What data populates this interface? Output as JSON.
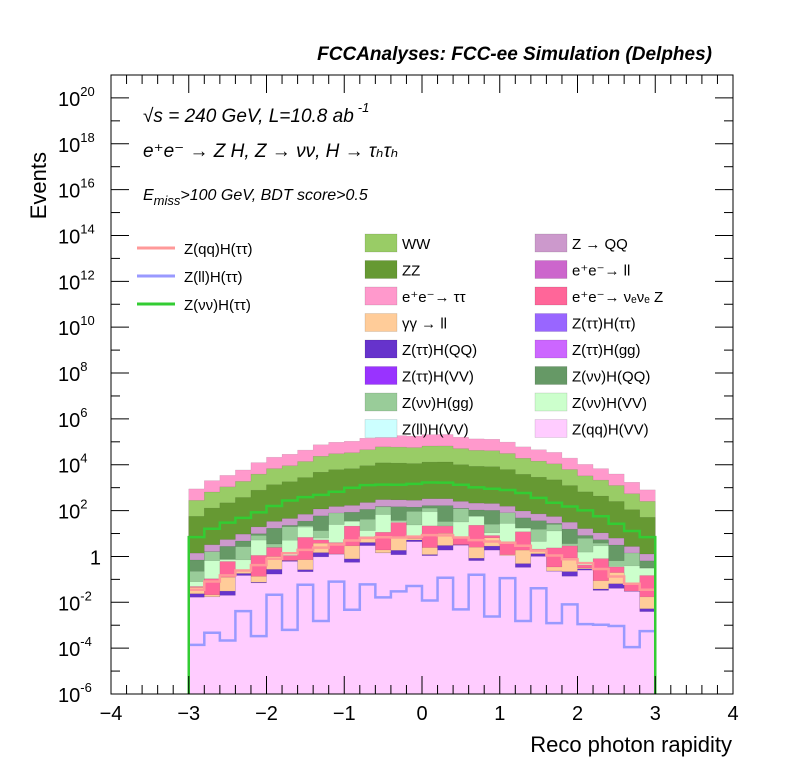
{
  "chart_data": {
    "type": "histogram",
    "title": "FCCAnalyses: FCC-ee Simulation (Delphes)",
    "xlabel": "Reco photon rapidity",
    "ylabel": "Events",
    "xlim": [
      -4,
      4
    ],
    "ylim": [
      1e-06,
      1e+21
    ],
    "log_y": true,
    "x_tick_labels": [
      "−4",
      "−3",
      "−2",
      "−1",
      "0",
      "1",
      "2",
      "3",
      "4"
    ],
    "y_tick_labels": [
      {
        "base": "10",
        "exp": "-6"
      },
      {
        "base": "10",
        "exp": "-4"
      },
      {
        "base": "10",
        "exp": "-2"
      },
      {
        "base": "1",
        "exp": ""
      },
      {
        "base": "10",
        "exp": "2"
      },
      {
        "base": "10",
        "exp": "4"
      },
      {
        "base": "10",
        "exp": "6"
      },
      {
        "base": "10",
        "exp": "8"
      },
      {
        "base": "10",
        "exp": "10"
      },
      {
        "base": "10",
        "exp": "12"
      },
      {
        "base": "10",
        "exp": "14"
      },
      {
        "base": "10",
        "exp": "16"
      },
      {
        "base": "10",
        "exp": "18"
      },
      {
        "base": "10",
        "exp": "20"
      }
    ],
    "annotations": {
      "line1": "√s = 240 GeV, L=10.8 ab",
      "line1_sup": "-1",
      "line2": "e⁺e⁻ → Z H, Z → νν, H → τₕτₕ",
      "line3": "E",
      "line3_sub": "miss",
      "line3_rest": ">100 GeV, BDT score>0.5"
    },
    "bins": {
      "min": -3,
      "max": 3,
      "count": 30
    },
    "stack_totals": [
      {
        "name": "Z(qq)H(VV)",
        "color": "#ffccff",
        "peak_exp": 0.3
      },
      {
        "name": "Z(ττ)H(gg)",
        "color": "#cc55ff",
        "peak_exp": -0.4
      },
      {
        "name": "Z(ττ)H(QQ)",
        "color": "#6633cc",
        "peak_exp": 0.4
      },
      {
        "name": "γγ → ll",
        "color": "#ffcc99",
        "peak_exp": 0.7
      },
      {
        "name": "e⁺e⁻→ νₑνₑ Z",
        "color": "#ff6699",
        "peak_exp": 1.2
      },
      {
        "name": "Z(νν)H(VV)",
        "color": "#ccffcc",
        "peak_exp": 1.6
      },
      {
        "name": "Z(νν)H(gg)",
        "color": "#99cc99",
        "peak_exp": 1.9
      },
      {
        "name": "Z(νν)H(QQ)",
        "color": "#669966",
        "peak_exp": 2.2
      },
      {
        "name": "Z → QQ",
        "color": "#cc99cc",
        "peak_exp": 2.5
      },
      {
        "name": "ZZ",
        "color": "#669933",
        "peak_exp": 4.1
      },
      {
        "name": "WW",
        "color": "#99cc66",
        "peak_exp": 4.8
      },
      {
        "name": "e⁺e⁻→ ττ",
        "color": "#ff99cc",
        "peak_exp": 5.3
      }
    ],
    "series": [
      {
        "name": "Z(qq)H(ττ)",
        "type": "line",
        "color": "#ff9999",
        "peak_exp": 0.9
      },
      {
        "name": "Z(ll)H(ττ)",
        "type": "line",
        "color": "#9999ff",
        "peak_exp": -1.5
      },
      {
        "name": "Z(νν)H(ττ)",
        "type": "line",
        "color": "#33cc33",
        "peak_exp": 3.2
      }
    ],
    "legend_lines": [
      {
        "name": "Z(qq)H(ττ)",
        "color": "#ff9999"
      },
      {
        "name": "Z(ll)H(ττ)",
        "color": "#9999ff"
      },
      {
        "name": "Z(νν)H(ττ)",
        "color": "#33cc33"
      }
    ],
    "legend_fills": [
      {
        "name": "WW",
        "color": "#99cc66"
      },
      {
        "name": "Z → QQ",
        "color": "#cc99cc"
      },
      {
        "name": "ZZ",
        "color": "#669933"
      },
      {
        "name": "e⁺e⁻→ ll",
        "color": "#cc66cc"
      },
      {
        "name": "e⁺e⁻→ ττ",
        "color": "#ff99cc"
      },
      {
        "name": "e⁺e⁻→ νₑνₑ Z",
        "color": "#ff6699"
      },
      {
        "name": "γγ → ll",
        "color": "#ffcc99"
      },
      {
        "name": "Z(ττ)H(ττ)",
        "color": "#9966ff"
      },
      {
        "name": "Z(ττ)H(QQ)",
        "color": "#6633cc"
      },
      {
        "name": "Z(ττ)H(gg)",
        "color": "#cc66ff"
      },
      {
        "name": "Z(ττ)H(VV)",
        "color": "#9933ff"
      },
      {
        "name": "Z(νν)H(QQ)",
        "color": "#669966"
      },
      {
        "name": "Z(νν)H(gg)",
        "color": "#99cc99"
      },
      {
        "name": "Z(νν)H(VV)",
        "color": "#ccffcc"
      },
      {
        "name": "Z(ll)H(VV)",
        "color": "#ccffff"
      },
      {
        "name": "Z(qq)H(VV)",
        "color": "#ffccff"
      }
    ]
  }
}
